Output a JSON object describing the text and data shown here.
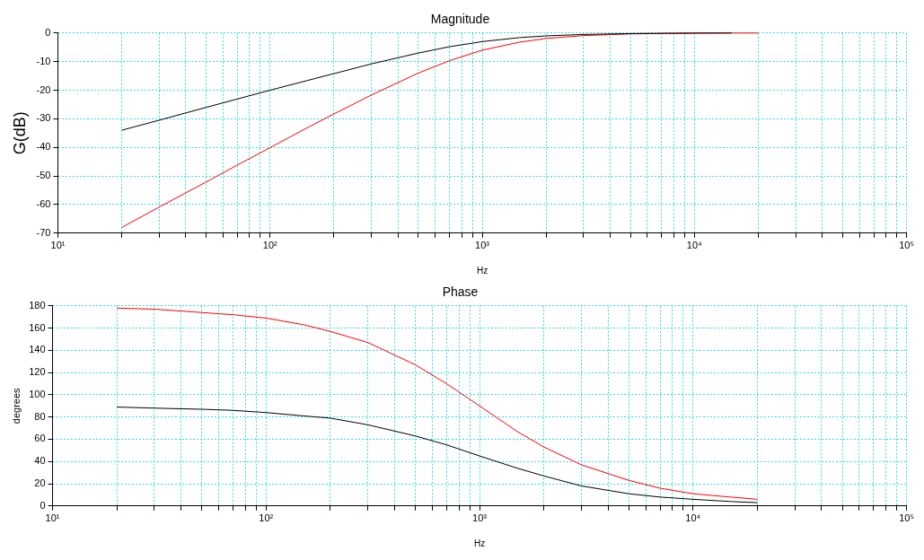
{
  "chart_data": [
    {
      "type": "line",
      "title": "Magnitude",
      "xlabel": "Hz",
      "ylabel": "G(dB)",
      "log": "x",
      "grid": true,
      "marker": "none",
      "xlim": [
        10,
        100000
      ],
      "ylim": [
        -70,
        0
      ],
      "xticks": [
        {
          "value": 10,
          "label": "10¹"
        },
        {
          "value": 20,
          "label": null
        },
        {
          "value": 30,
          "label": null
        },
        {
          "value": 40,
          "label": null
        },
        {
          "value": 50,
          "label": null
        },
        {
          "value": 60,
          "label": null
        },
        {
          "value": 70,
          "label": null
        },
        {
          "value": 80,
          "label": null
        },
        {
          "value": 90,
          "label": null
        },
        {
          "value": 100,
          "label": "10²"
        },
        {
          "value": 200,
          "label": null
        },
        {
          "value": 300,
          "label": null
        },
        {
          "value": 400,
          "label": null
        },
        {
          "value": 500,
          "label": null
        },
        {
          "value": 600,
          "label": null
        },
        {
          "value": 700,
          "label": null
        },
        {
          "value": 800,
          "label": null
        },
        {
          "value": 900,
          "label": null
        },
        {
          "value": 1000,
          "label": "10³"
        },
        {
          "value": 2000,
          "label": null
        },
        {
          "value": 3000,
          "label": null
        },
        {
          "value": 4000,
          "label": null
        },
        {
          "value": 5000,
          "label": null
        },
        {
          "value": 6000,
          "label": null
        },
        {
          "value": 7000,
          "label": null
        },
        {
          "value": 8000,
          "label": null
        },
        {
          "value": 9000,
          "label": null
        },
        {
          "value": 10000,
          "label": "10⁴"
        },
        {
          "value": 20000,
          "label": null
        },
        {
          "value": 30000,
          "label": null
        },
        {
          "value": 40000,
          "label": null
        },
        {
          "value": 50000,
          "label": null
        },
        {
          "value": 60000,
          "label": null
        },
        {
          "value": 70000,
          "label": null
        },
        {
          "value": 80000,
          "label": null
        },
        {
          "value": 90000,
          "label": null
        },
        {
          "value": 100000,
          "label": "10⁵"
        }
      ],
      "yticks": [
        -70,
        -60,
        -50,
        -40,
        -30,
        -20,
        -10,
        0
      ],
      "x": [
        20,
        30,
        50,
        70,
        100,
        150,
        200,
        300,
        500,
        700,
        1000,
        1500,
        2000,
        3000,
        5000,
        7000,
        10000,
        15000,
        20000
      ],
      "series": [
        {
          "color": "#000000",
          "values": [
            -34.0,
            -30.5,
            -26.0,
            -23.1,
            -20.0,
            -16.6,
            -14.2,
            -10.8,
            -7.0,
            -4.8,
            -3.0,
            -1.6,
            -1.0,
            -0.5,
            -0.2,
            -0.1,
            0,
            0,
            null
          ]
        },
        {
          "color": "#ff0000",
          "values": [
            -68.0,
            -60.9,
            -52.1,
            -46.2,
            -40.1,
            -33.1,
            -28.3,
            -21.7,
            -14.0,
            -9.7,
            -6.0,
            -3.2,
            -1.9,
            -0.9,
            -0.3,
            -0.2,
            -0.1,
            0,
            0
          ]
        }
      ]
    },
    {
      "type": "line",
      "title": "Phase",
      "xlabel": "Hz",
      "ylabel": "degrees",
      "log": "x",
      "grid": true,
      "marker": "none",
      "xlim": [
        10,
        100000
      ],
      "ylim": [
        0,
        180
      ],
      "xticks": [
        {
          "value": 10,
          "label": "10¹"
        },
        {
          "value": 20,
          "label": null
        },
        {
          "value": 30,
          "label": null
        },
        {
          "value": 40,
          "label": null
        },
        {
          "value": 50,
          "label": null
        },
        {
          "value": 60,
          "label": null
        },
        {
          "value": 70,
          "label": null
        },
        {
          "value": 80,
          "label": null
        },
        {
          "value": 90,
          "label": null
        },
        {
          "value": 100,
          "label": "10²"
        },
        {
          "value": 200,
          "label": null
        },
        {
          "value": 300,
          "label": null
        },
        {
          "value": 400,
          "label": null
        },
        {
          "value": 500,
          "label": null
        },
        {
          "value": 600,
          "label": null
        },
        {
          "value": 700,
          "label": null
        },
        {
          "value": 800,
          "label": null
        },
        {
          "value": 900,
          "label": null
        },
        {
          "value": 1000,
          "label": "10³"
        },
        {
          "value": 2000,
          "label": null
        },
        {
          "value": 3000,
          "label": null
        },
        {
          "value": 4000,
          "label": null
        },
        {
          "value": 5000,
          "label": null
        },
        {
          "value": 6000,
          "label": null
        },
        {
          "value": 7000,
          "label": null
        },
        {
          "value": 8000,
          "label": null
        },
        {
          "value": 9000,
          "label": null
        },
        {
          "value": 10000,
          "label": "10⁴"
        },
        {
          "value": 20000,
          "label": null
        },
        {
          "value": 30000,
          "label": null
        },
        {
          "value": 40000,
          "label": null
        },
        {
          "value": 50000,
          "label": null
        },
        {
          "value": 60000,
          "label": null
        },
        {
          "value": 70000,
          "label": null
        },
        {
          "value": 80000,
          "label": null
        },
        {
          "value": 90000,
          "label": null
        },
        {
          "value": 100000,
          "label": "10⁵"
        }
      ],
      "yticks": [
        0,
        20,
        40,
        60,
        80,
        100,
        120,
        140,
        160,
        180
      ],
      "x": [
        20,
        30,
        50,
        70,
        100,
        150,
        200,
        300,
        500,
        700,
        1000,
        1500,
        2000,
        3000,
        5000,
        7000,
        10000,
        15000,
        20000
      ],
      "series": [
        {
          "color": "#000000",
          "values": [
            89,
            88,
            87,
            86,
            84,
            81,
            79,
            73,
            63,
            55,
            45,
            34,
            27,
            18,
            11,
            8,
            6,
            4,
            3
          ]
        },
        {
          "color": "#ff0000",
          "values": [
            178,
            177,
            174,
            172,
            169,
            163,
            157,
            147,
            127,
            110,
            90,
            67,
            53,
            37,
            23,
            16,
            11,
            8,
            6
          ]
        }
      ]
    }
  ]
}
